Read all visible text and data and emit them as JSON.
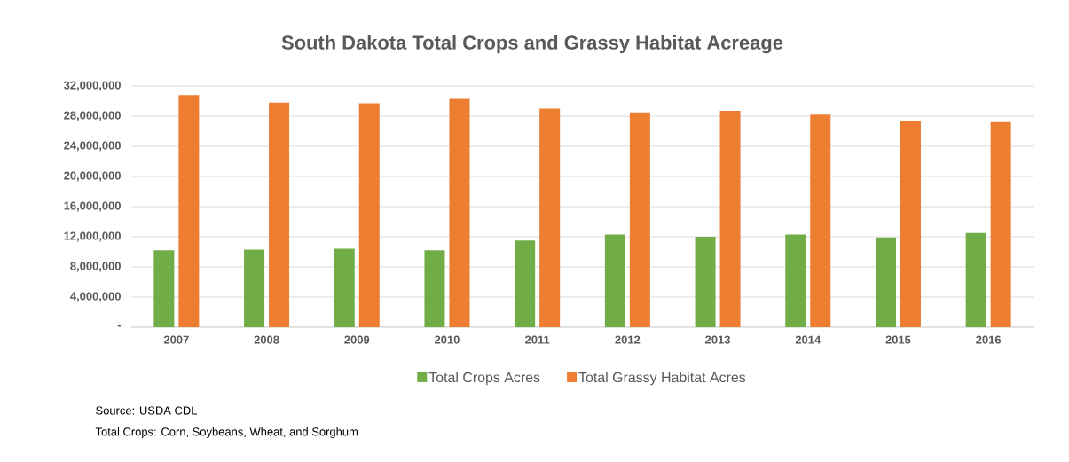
{
  "chart_data": {
    "type": "bar",
    "title": "South Dakota Total Crops and Grassy Habitat Acreage",
    "categories": [
      "2007",
      "2008",
      "2009",
      "2010",
      "2011",
      "2012",
      "2013",
      "2014",
      "2015",
      "2016"
    ],
    "series": [
      {
        "name": "Total Crops Acres",
        "color": "#70ad47",
        "values": [
          10200000,
          10300000,
          10400000,
          10200000,
          11500000,
          12300000,
          12000000,
          12300000,
          11900000,
          12500000
        ]
      },
      {
        "name": "Total Grassy Habitat Acres",
        "color": "#ed7d31",
        "values": [
          30800000,
          29800000,
          29700000,
          30300000,
          29000000,
          28500000,
          28700000,
          28200000,
          27400000,
          27200000
        ]
      }
    ],
    "ylim": [
      0,
      32000000
    ],
    "yticks": [
      {
        "value": 0,
        "label": "-"
      },
      {
        "value": 4000000,
        "label": "4,000,000"
      },
      {
        "value": 8000000,
        "label": "8,000,000"
      },
      {
        "value": 12000000,
        "label": "12,000,000"
      },
      {
        "value": 16000000,
        "label": "16,000,000"
      },
      {
        "value": 20000000,
        "label": "20,000,000"
      },
      {
        "value": 24000000,
        "label": "24,000,000"
      },
      {
        "value": 28000000,
        "label": "28,000,000"
      },
      {
        "value": 32000000,
        "label": "32,000,000"
      }
    ],
    "grid": "y",
    "legend": "bottom",
    "annotations": [
      "Source: USDA CDL",
      "Total Crops: Corn, Soybeans, Wheat, and Sorghum"
    ]
  }
}
